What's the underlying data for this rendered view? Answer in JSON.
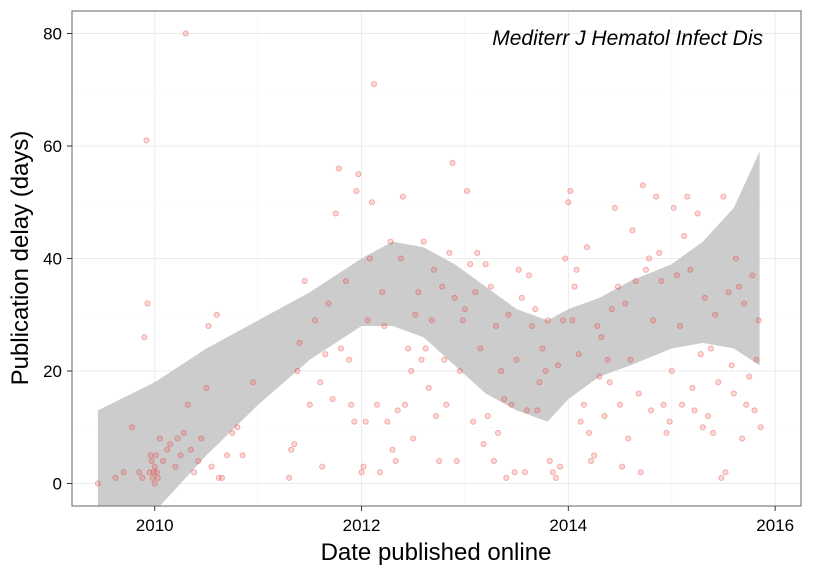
{
  "chart_data": {
    "type": "scatter",
    "xlabel": "Date published online",
    "ylabel": "Publication delay (days)",
    "annotation": "Mediterr J Hematol Infect Dis",
    "xlim": [
      2009.2,
      2016.25
    ],
    "ylim": [
      -4,
      84
    ],
    "x_ticks": [
      2010,
      2012,
      2014,
      2016
    ],
    "x_tick_labels": [
      "2010",
      "2012",
      "2014",
      "2016"
    ],
    "y_ticks": [
      0,
      20,
      40,
      60,
      80
    ],
    "y_tick_labels": [
      "0",
      "20",
      "40",
      "60",
      "80"
    ],
    "grid": true,
    "colors": {
      "points": "#e8403a",
      "band": "#cccccc",
      "panel_border": "#7f7f7f",
      "grid": "#ebebeb"
    },
    "points": [
      [
        2009.45,
        0
      ],
      [
        2009.62,
        1
      ],
      [
        2009.7,
        2
      ],
      [
        2009.78,
        10
      ],
      [
        2009.85,
        2
      ],
      [
        2009.88,
        1
      ],
      [
        2009.9,
        26
      ],
      [
        2009.92,
        61
      ],
      [
        2009.93,
        32
      ],
      [
        2009.95,
        2
      ],
      [
        2009.96,
        5
      ],
      [
        2009.97,
        4
      ],
      [
        2009.98,
        1
      ],
      [
        2009.99,
        2
      ],
      [
        2010.0,
        3
      ],
      [
        2010.0,
        0
      ],
      [
        2010.01,
        5
      ],
      [
        2010.02,
        2
      ],
      [
        2010.03,
        1
      ],
      [
        2010.05,
        8
      ],
      [
        2010.08,
        4
      ],
      [
        2010.12,
        6
      ],
      [
        2010.15,
        7
      ],
      [
        2010.2,
        3
      ],
      [
        2010.22,
        8
      ],
      [
        2010.25,
        5
      ],
      [
        2010.28,
        9
      ],
      [
        2010.3,
        80
      ],
      [
        2010.32,
        14
      ],
      [
        2010.35,
        6
      ],
      [
        2010.38,
        2
      ],
      [
        2010.42,
        4
      ],
      [
        2010.45,
        8
      ],
      [
        2010.5,
        17
      ],
      [
        2010.52,
        28
      ],
      [
        2010.55,
        3
      ],
      [
        2010.6,
        30
      ],
      [
        2010.62,
        1
      ],
      [
        2010.65,
        1
      ],
      [
        2010.7,
        5
      ],
      [
        2010.75,
        9
      ],
      [
        2010.8,
        10
      ],
      [
        2010.85,
        5
      ],
      [
        2010.95,
        18
      ],
      [
        2011.3,
        1
      ],
      [
        2011.32,
        6
      ],
      [
        2011.35,
        7
      ],
      [
        2011.38,
        20
      ],
      [
        2011.4,
        25
      ],
      [
        2011.45,
        36
      ],
      [
        2011.5,
        14
      ],
      [
        2011.55,
        29
      ],
      [
        2011.6,
        18
      ],
      [
        2011.62,
        3
      ],
      [
        2011.65,
        23
      ],
      [
        2011.68,
        32
      ],
      [
        2011.72,
        15
      ],
      [
        2011.75,
        48
      ],
      [
        2011.78,
        56
      ],
      [
        2011.8,
        24
      ],
      [
        2011.85,
        36
      ],
      [
        2011.88,
        22
      ],
      [
        2011.9,
        14
      ],
      [
        2011.93,
        11
      ],
      [
        2011.95,
        52
      ],
      [
        2011.97,
        55
      ],
      [
        2012.0,
        2
      ],
      [
        2012.02,
        3
      ],
      [
        2012.04,
        11
      ],
      [
        2012.06,
        29
      ],
      [
        2012.08,
        40
      ],
      [
        2012.1,
        50
      ],
      [
        2012.12,
        71
      ],
      [
        2012.15,
        14
      ],
      [
        2012.18,
        2
      ],
      [
        2012.2,
        34
      ],
      [
        2012.22,
        28
      ],
      [
        2012.25,
        11
      ],
      [
        2012.28,
        43
      ],
      [
        2012.3,
        6
      ],
      [
        2012.33,
        4
      ],
      [
        2012.35,
        13
      ],
      [
        2012.38,
        40
      ],
      [
        2012.4,
        51
      ],
      [
        2012.42,
        14
      ],
      [
        2012.45,
        24
      ],
      [
        2012.48,
        20
      ],
      [
        2012.5,
        8
      ],
      [
        2012.52,
        30
      ],
      [
        2012.55,
        34
      ],
      [
        2012.58,
        22
      ],
      [
        2012.6,
        43
      ],
      [
        2012.62,
        24
      ],
      [
        2012.65,
        17
      ],
      [
        2012.68,
        29
      ],
      [
        2012.7,
        38
      ],
      [
        2012.72,
        12
      ],
      [
        2012.75,
        4
      ],
      [
        2012.78,
        35
      ],
      [
        2012.8,
        22
      ],
      [
        2012.82,
        14
      ],
      [
        2012.85,
        41
      ],
      [
        2012.88,
        57
      ],
      [
        2012.9,
        33
      ],
      [
        2012.92,
        4
      ],
      [
        2012.95,
        20
      ],
      [
        2012.98,
        29
      ],
      [
        2013.0,
        31
      ],
      [
        2013.02,
        52
      ],
      [
        2013.05,
        39
      ],
      [
        2013.08,
        11
      ],
      [
        2013.1,
        34
      ],
      [
        2013.12,
        41
      ],
      [
        2013.15,
        24
      ],
      [
        2013.18,
        7
      ],
      [
        2013.2,
        39
      ],
      [
        2013.22,
        12
      ],
      [
        2013.25,
        35
      ],
      [
        2013.28,
        4
      ],
      [
        2013.3,
        28
      ],
      [
        2013.32,
        9
      ],
      [
        2013.35,
        20
      ],
      [
        2013.38,
        15
      ],
      [
        2013.4,
        1
      ],
      [
        2013.42,
        30
      ],
      [
        2013.45,
        14
      ],
      [
        2013.48,
        2
      ],
      [
        2013.5,
        22
      ],
      [
        2013.52,
        38
      ],
      [
        2013.55,
        33
      ],
      [
        2013.58,
        2
      ],
      [
        2013.6,
        13
      ],
      [
        2013.62,
        37
      ],
      [
        2013.65,
        28
      ],
      [
        2013.68,
        31
      ],
      [
        2013.7,
        13
      ],
      [
        2013.72,
        18
      ],
      [
        2013.75,
        24
      ],
      [
        2013.78,
        20
      ],
      [
        2013.8,
        29
      ],
      [
        2013.82,
        4
      ],
      [
        2013.85,
        2
      ],
      [
        2013.88,
        1
      ],
      [
        2013.9,
        21
      ],
      [
        2013.92,
        3
      ],
      [
        2013.95,
        29
      ],
      [
        2013.97,
        40
      ],
      [
        2014.0,
        50
      ],
      [
        2014.02,
        52
      ],
      [
        2014.04,
        29
      ],
      [
        2014.06,
        35
      ],
      [
        2014.08,
        38
      ],
      [
        2014.1,
        23
      ],
      [
        2014.12,
        11
      ],
      [
        2014.15,
        14
      ],
      [
        2014.18,
        42
      ],
      [
        2014.2,
        9
      ],
      [
        2014.22,
        4
      ],
      [
        2014.25,
        5
      ],
      [
        2014.28,
        28
      ],
      [
        2014.3,
        19
      ],
      [
        2014.32,
        26
      ],
      [
        2014.35,
        12
      ],
      [
        2014.38,
        22
      ],
      [
        2014.4,
        18
      ],
      [
        2014.42,
        31
      ],
      [
        2014.45,
        49
      ],
      [
        2014.48,
        35
      ],
      [
        2014.5,
        14
      ],
      [
        2014.52,
        3
      ],
      [
        2014.55,
        32
      ],
      [
        2014.58,
        8
      ],
      [
        2014.6,
        22
      ],
      [
        2014.62,
        45
      ],
      [
        2014.65,
        36
      ],
      [
        2014.68,
        16
      ],
      [
        2014.7,
        2
      ],
      [
        2014.72,
        53
      ],
      [
        2014.75,
        38
      ],
      [
        2014.78,
        40
      ],
      [
        2014.8,
        13
      ],
      [
        2014.82,
        29
      ],
      [
        2014.85,
        51
      ],
      [
        2014.88,
        41
      ],
      [
        2014.9,
        36
      ],
      [
        2014.92,
        14
      ],
      [
        2014.95,
        9
      ],
      [
        2014.98,
        11
      ],
      [
        2015.0,
        20
      ],
      [
        2015.02,
        49
      ],
      [
        2015.05,
        37
      ],
      [
        2015.08,
        28
      ],
      [
        2015.1,
        14
      ],
      [
        2015.12,
        44
      ],
      [
        2015.15,
        51
      ],
      [
        2015.18,
        38
      ],
      [
        2015.2,
        17
      ],
      [
        2015.22,
        13
      ],
      [
        2015.25,
        48
      ],
      [
        2015.28,
        23
      ],
      [
        2015.3,
        10
      ],
      [
        2015.32,
        33
      ],
      [
        2015.35,
        12
      ],
      [
        2015.38,
        24
      ],
      [
        2015.4,
        9
      ],
      [
        2015.42,
        30
      ],
      [
        2015.45,
        18
      ],
      [
        2015.48,
        1
      ],
      [
        2015.5,
        51
      ],
      [
        2015.52,
        2
      ],
      [
        2015.55,
        34
      ],
      [
        2015.58,
        21
      ],
      [
        2015.6,
        16
      ],
      [
        2015.62,
        40
      ],
      [
        2015.65,
        35
      ],
      [
        2015.68,
        8
      ],
      [
        2015.7,
        32
      ],
      [
        2015.72,
        14
      ],
      [
        2015.75,
        19
      ],
      [
        2015.78,
        37
      ],
      [
        2015.8,
        13
      ],
      [
        2015.82,
        22
      ],
      [
        2015.84,
        29
      ],
      [
        2015.86,
        10
      ]
    ],
    "band": {
      "x": [
        2009.45,
        2010.0,
        2010.5,
        2011.0,
        2011.5,
        2012.0,
        2012.3,
        2012.6,
        2012.9,
        2013.2,
        2013.5,
        2013.8,
        2014.0,
        2014.3,
        2014.6,
        2015.0,
        2015.3,
        2015.6,
        2015.85
      ],
      "upper": [
        13,
        18,
        24,
        29,
        34,
        40,
        43,
        42,
        39,
        35,
        31,
        29,
        31,
        33,
        36,
        39,
        43,
        49,
        59
      ],
      "lower": [
        -14,
        -5,
        5,
        14,
        22,
        28,
        28,
        26,
        21,
        16,
        13,
        11,
        15,
        19,
        21,
        24,
        25,
        24,
        21
      ]
    }
  }
}
